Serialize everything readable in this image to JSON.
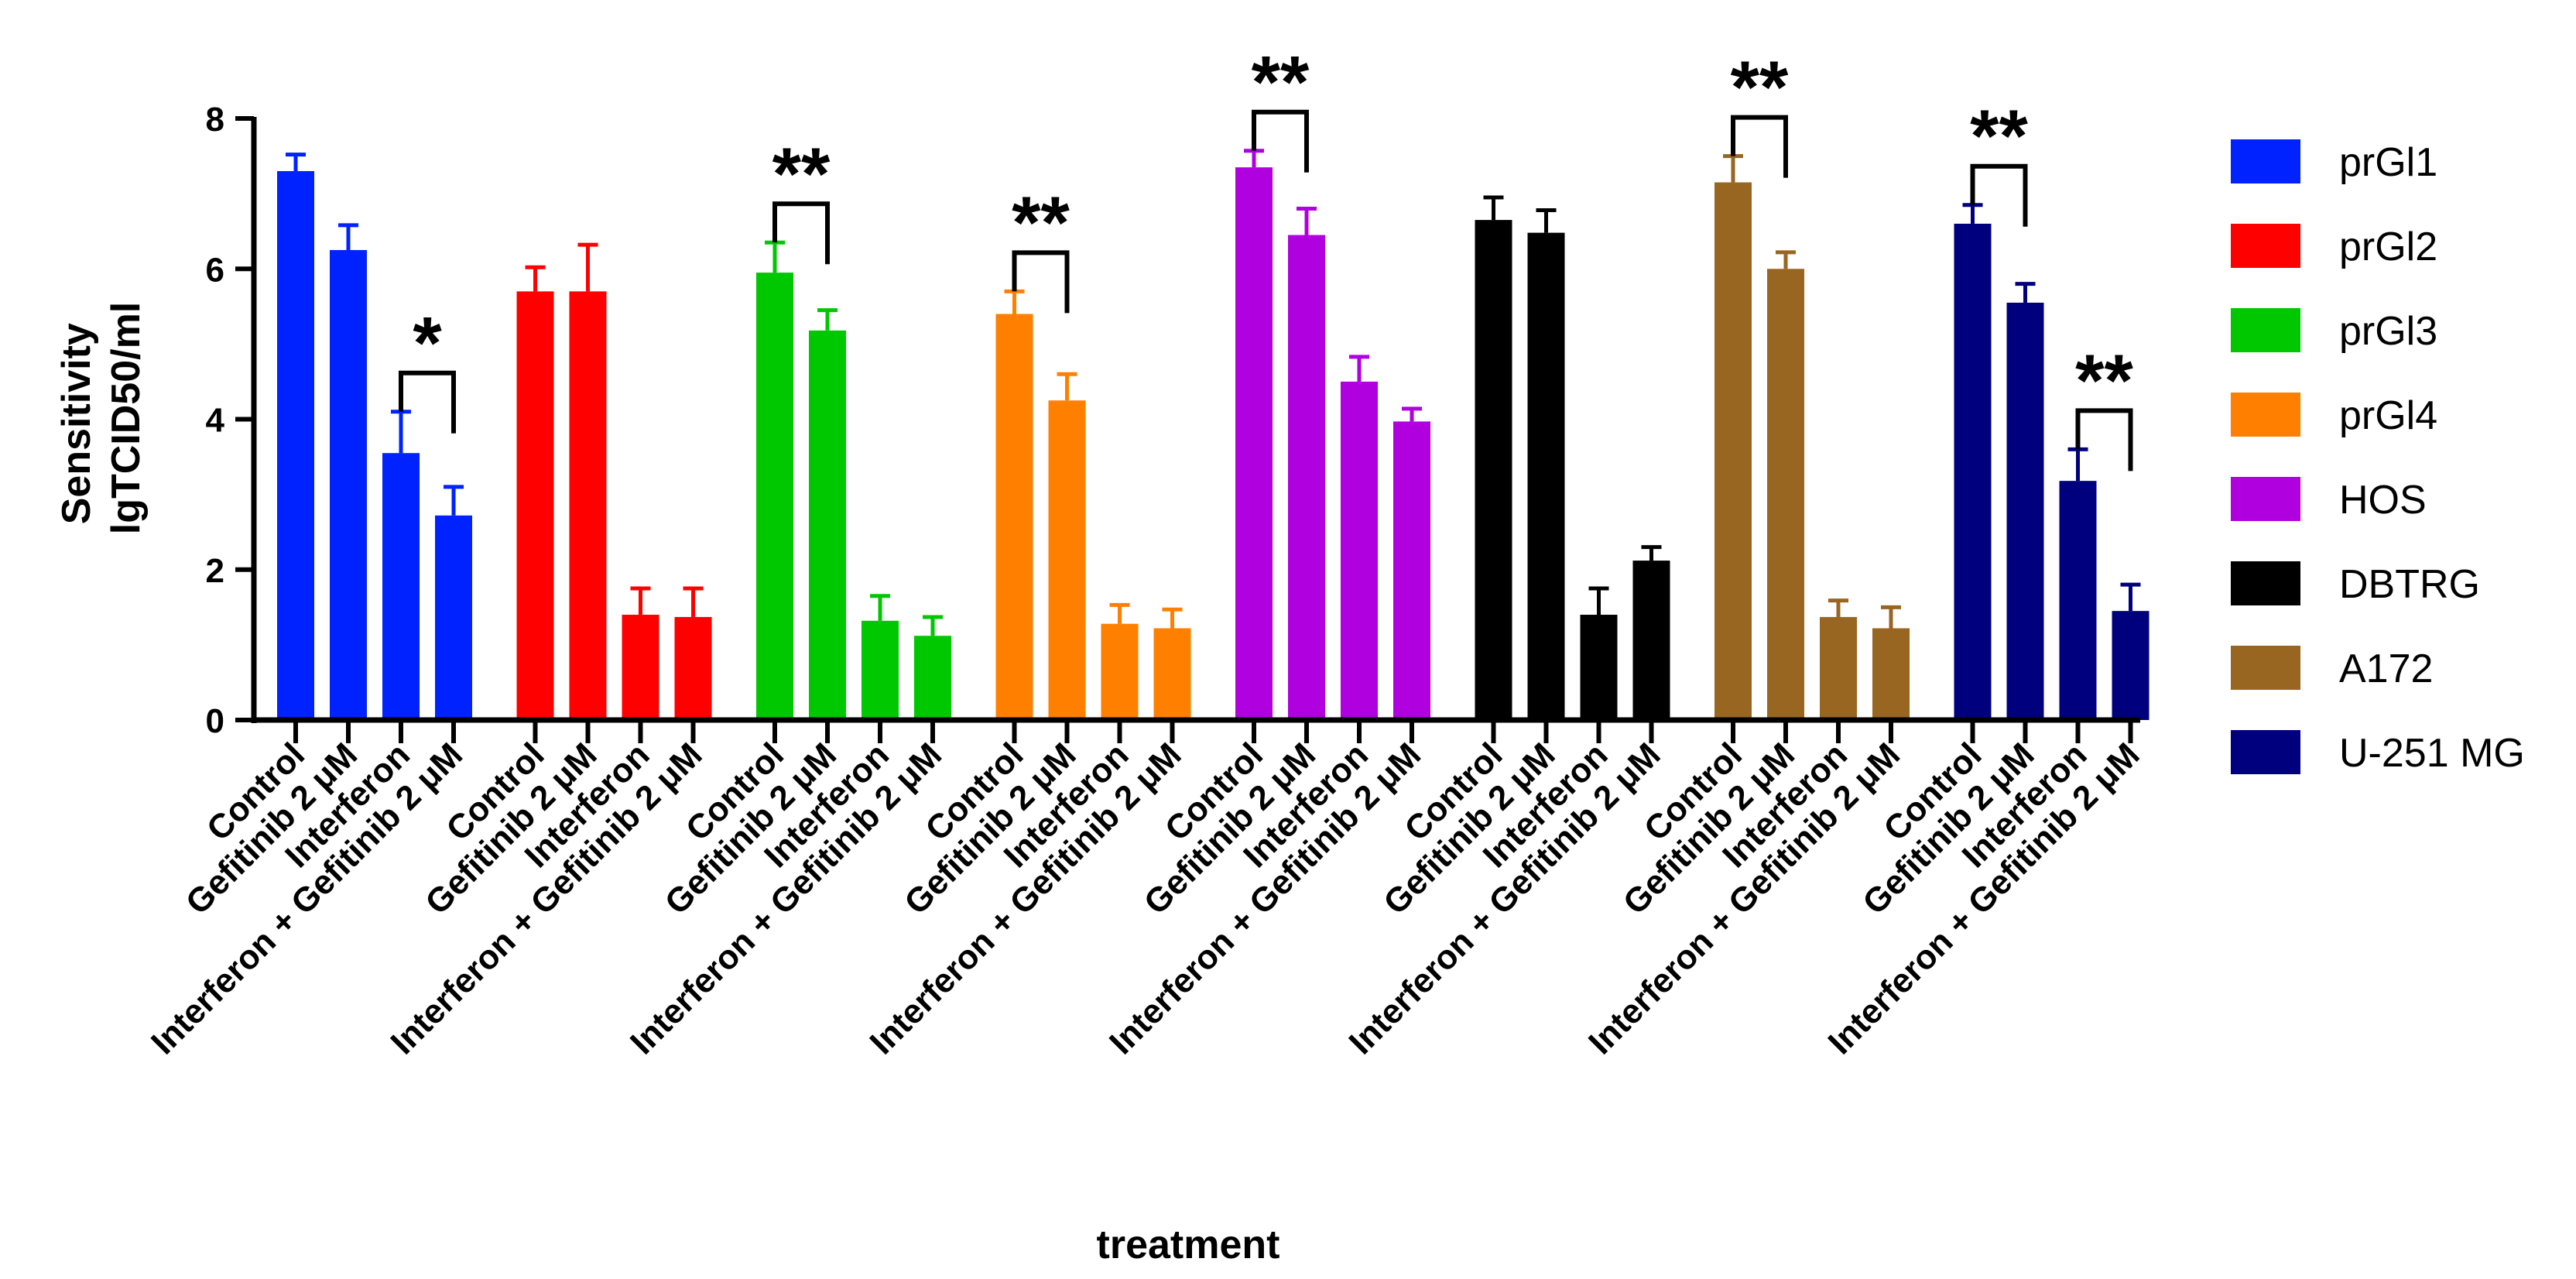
{
  "chart_data": {
    "type": "bar",
    "title": "",
    "xlabel": "treatment",
    "ylabel_lines": [
      "Sensitivity",
      "lgTCID50/ml"
    ],
    "ylim": [
      0,
      8
    ],
    "yticks": [
      0,
      2,
      4,
      6,
      8
    ],
    "categories": [
      "Control",
      "Gefitinib 2 μM",
      "Interferon",
      "Interferon + Gefitinib 2 μM"
    ],
    "legend_position": "right",
    "series": [
      {
        "name": "prGl1",
        "color": "#0022ff",
        "values": [
          7.3,
          6.25,
          3.55,
          2.72
        ],
        "errors": [
          0.22,
          0.33,
          0.55,
          0.38
        ]
      },
      {
        "name": "prGl2",
        "color": "#ff0000",
        "values": [
          5.7,
          5.7,
          1.4,
          1.37
        ],
        "errors": [
          0.32,
          0.62,
          0.35,
          0.38
        ]
      },
      {
        "name": "prGl3",
        "color": "#00c800",
        "values": [
          5.95,
          5.18,
          1.32,
          1.12
        ],
        "errors": [
          0.4,
          0.27,
          0.33,
          0.25
        ]
      },
      {
        "name": "prGl4",
        "color": "#ff8000",
        "values": [
          5.4,
          4.25,
          1.28,
          1.22
        ],
        "errors": [
          0.3,
          0.35,
          0.25,
          0.25
        ]
      },
      {
        "name": "HOS",
        "color": "#b000e0",
        "values": [
          7.35,
          6.45,
          4.5,
          3.97
        ],
        "errors": [
          0.22,
          0.35,
          0.33,
          0.17
        ]
      },
      {
        "name": "DBTRG",
        "color": "#000000",
        "values": [
          6.65,
          6.48,
          1.4,
          2.12
        ],
        "errors": [
          0.3,
          0.3,
          0.35,
          0.18
        ]
      },
      {
        "name": "A172",
        "color": "#996622",
        "values": [
          7.15,
          6.0,
          1.37,
          1.22
        ],
        "errors": [
          0.35,
          0.22,
          0.22,
          0.28
        ]
      },
      {
        "name": "U-251 MG",
        "color": "#00007f",
        "values": [
          6.6,
          5.55,
          3.18,
          1.45
        ],
        "errors": [
          0.25,
          0.25,
          0.42,
          0.35
        ]
      }
    ],
    "significance": [
      {
        "series": 0,
        "from": 2,
        "to": 3,
        "label": "*"
      },
      {
        "series": 2,
        "from": 0,
        "to": 1,
        "label": "**"
      },
      {
        "series": 3,
        "from": 0,
        "to": 1,
        "label": "**"
      },
      {
        "series": 4,
        "from": 0,
        "to": 1,
        "label": "**"
      },
      {
        "series": 6,
        "from": 0,
        "to": 1,
        "label": "**"
      },
      {
        "series": 7,
        "from": 0,
        "to": 1,
        "label": "**"
      },
      {
        "series": 7,
        "from": 2,
        "to": 3,
        "label": "**"
      }
    ]
  }
}
